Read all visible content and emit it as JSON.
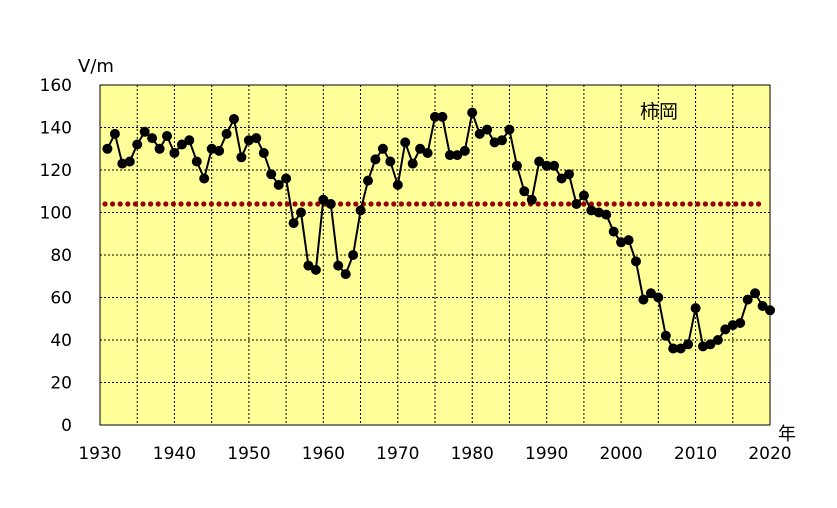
{
  "chart_data": {
    "type": "line",
    "location_label": "柿岡",
    "ylabel": "V/m",
    "xlabel": "年",
    "xlim": [
      1930,
      2020
    ],
    "ylim": [
      0,
      160
    ],
    "x_ticks": [
      1930,
      1940,
      1950,
      1960,
      1970,
      1980,
      1990,
      2000,
      2010,
      2020
    ],
    "y_ticks": [
      0,
      20,
      40,
      60,
      80,
      100,
      120,
      140,
      160
    ],
    "grid": true,
    "colors": {
      "plot_background": "#ffff99",
      "grid": "#000000",
      "series": "#000000",
      "reference": "#990000"
    },
    "reference_line": {
      "y": 104
    },
    "series": [
      {
        "x": [
          1931,
          1932,
          1933,
          1934,
          1935,
          1936,
          1937,
          1938,
          1939,
          1940,
          1941,
          1942,
          1943,
          1944,
          1945,
          1946,
          1947,
          1948,
          1949,
          1950,
          1951,
          1952,
          1953,
          1954,
          1955,
          1956,
          1957,
          1958,
          1959,
          1960,
          1961,
          1962,
          1963,
          1964,
          1965,
          1966,
          1967,
          1968,
          1969,
          1970,
          1971,
          1972,
          1973,
          1974,
          1975,
          1976,
          1977,
          1978,
          1979,
          1980,
          1981,
          1982,
          1983,
          1984,
          1985,
          1986,
          1987,
          1988,
          1989,
          1990,
          1991,
          1992,
          1993,
          1994,
          1995,
          1996,
          1997,
          1998,
          1999,
          2000,
          2001,
          2002,
          2003,
          2004,
          2005,
          2006,
          2007,
          2008,
          2009,
          2010,
          2011,
          2012,
          2013,
          2014,
          2015,
          2016,
          2017,
          2018,
          2019,
          2020
        ],
        "values": [
          130,
          137,
          123,
          124,
          132,
          138,
          135,
          130,
          136,
          128,
          132,
          134,
          124,
          116,
          130,
          129,
          137,
          144,
          126,
          134,
          135,
          128,
          118,
          113,
          116,
          95,
          100,
          75,
          73,
          106,
          104,
          75,
          71,
          80,
          101,
          115,
          125,
          130,
          124,
          113,
          133,
          123,
          130,
          128,
          145,
          145,
          127,
          127,
          129,
          147,
          137,
          139,
          133,
          134,
          139,
          122,
          110,
          106,
          124,
          122,
          122,
          116,
          118,
          104,
          108,
          101,
          100,
          99,
          91,
          86,
          87,
          77,
          59,
          62,
          60,
          42,
          36,
          36,
          38,
          55,
          37,
          38,
          40,
          45,
          47,
          48,
          59,
          62,
          56,
          54
        ]
      }
    ]
  }
}
